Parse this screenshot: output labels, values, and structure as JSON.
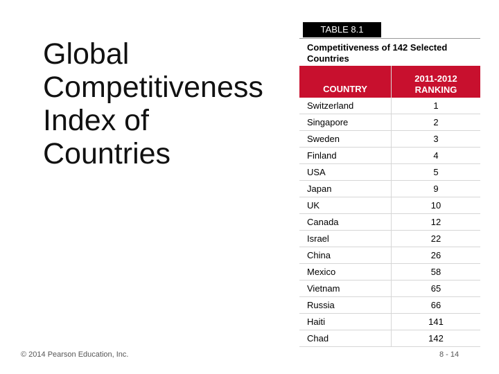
{
  "title_lines": [
    "Global",
    "Competitiveness",
    "Index of",
    "Countries"
  ],
  "table": {
    "tag": "TABLE 8.1",
    "caption": "Competitiveness of 142 Selected Countries",
    "headers": {
      "country": "COUNTRY",
      "ranking_line1": "2011-2012",
      "ranking_line2": "RANKING"
    },
    "rows": [
      {
        "country": "Switzerland",
        "rank": "1"
      },
      {
        "country": "Singapore",
        "rank": "2"
      },
      {
        "country": "Sweden",
        "rank": "3"
      },
      {
        "country": "Finland",
        "rank": "4"
      },
      {
        "country": "USA",
        "rank": "5"
      },
      {
        "country": "Japan",
        "rank": "9"
      },
      {
        "country": "UK",
        "rank": "10"
      },
      {
        "country": "Canada",
        "rank": "12"
      },
      {
        "country": "Israel",
        "rank": "22"
      },
      {
        "country": "China",
        "rank": "26"
      },
      {
        "country": "Mexico",
        "rank": "58"
      },
      {
        "country": "Vietnam",
        "rank": "65"
      },
      {
        "country": "Russia",
        "rank": "66"
      },
      {
        "country": "Haiti",
        "rank": "141"
      },
      {
        "country": "Chad",
        "rank": "142"
      }
    ]
  },
  "footer": {
    "copyright": "© 2014 Pearson Education, Inc.",
    "page": "8 - 14"
  },
  "colors": {
    "header_bg": "#c8102e",
    "tag_bg": "#000000"
  }
}
